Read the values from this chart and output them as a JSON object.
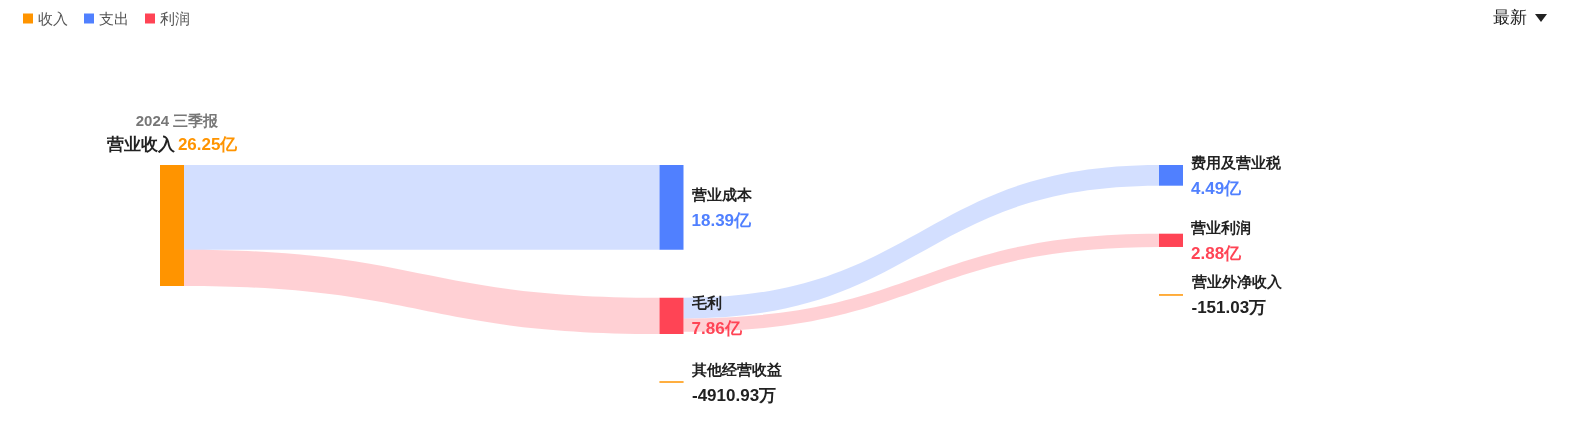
{
  "chart_data": {
    "type": "other",
    "title": "2024 三季报",
    "legend": "top left",
    "categories": [
      "营业收入",
      "营业成本",
      "毛利",
      "其他经营收益",
      "费用及营业税",
      "营业利润",
      "营业外净收入"
    ],
    "series": [
      {
        "name": "收入",
        "color": "#ff9400",
        "values": [
          26.25,
          null,
          null,
          -4910.93,
          null,
          null,
          -151.03
        ],
        "value_labels": [
          "26.25亿",
          null,
          null,
          "-4910.93万",
          null,
          null,
          "-151.03万"
        ]
      },
      {
        "name": "支出",
        "color": "#5080ff",
        "values": [
          null,
          18.39,
          null,
          null,
          4.49,
          null,
          null
        ],
        "value_labels": [
          null,
          "18.39亿",
          null,
          null,
          "4.49亿",
          null,
          null
        ]
      },
      {
        "name": "利润",
        "color": "#ff4455",
        "values": [
          null,
          null,
          7.86,
          null,
          null,
          2.88,
          null
        ],
        "value_labels": [
          null,
          null,
          "7.86亿",
          null,
          null,
          "2.88亿",
          null
        ]
      }
    ],
    "annotations": [
      "最新"
    ]
  }
}
